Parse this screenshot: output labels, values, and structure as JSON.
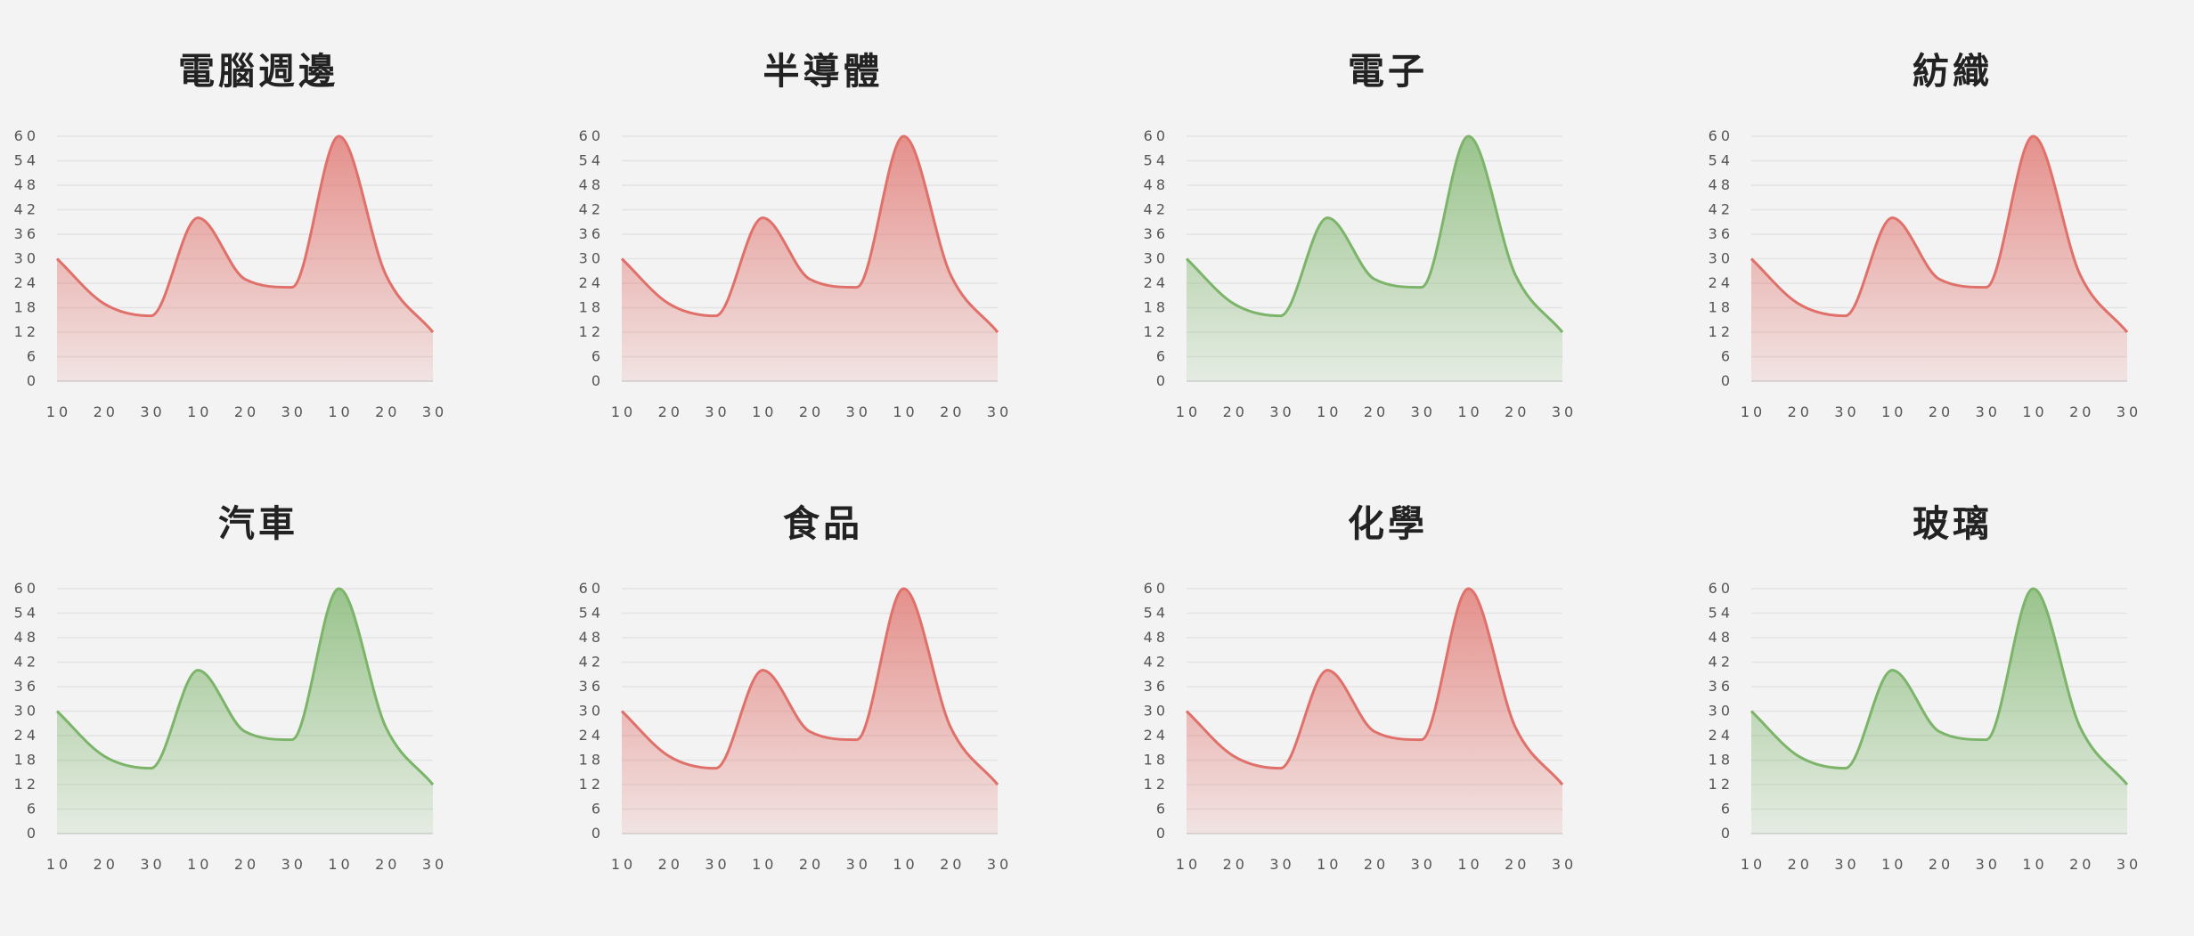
{
  "colors": {
    "up": "#e0706a",
    "down": "#7cb46a",
    "background": "#f3f3f3"
  },
  "chart_data": [
    {
      "type": "area",
      "title": "電腦週邊",
      "color": "red",
      "x": [
        "10",
        "20",
        "30",
        "10",
        "20",
        "30",
        "10",
        "20",
        "30"
      ],
      "values": [
        30,
        19,
        16,
        40,
        25,
        23,
        60,
        26,
        12
      ],
      "ylim": [
        0,
        60
      ],
      "yticks": [
        0,
        6,
        12,
        18,
        24,
        30,
        36,
        42,
        48,
        54,
        60
      ],
      "grid": true,
      "xlabel": "",
      "ylabel": ""
    },
    {
      "type": "area",
      "title": "半導體",
      "color": "red",
      "x": [
        "10",
        "20",
        "30",
        "10",
        "20",
        "30",
        "10",
        "20",
        "30"
      ],
      "values": [
        30,
        19,
        16,
        40,
        25,
        23,
        60,
        26,
        12
      ],
      "ylim": [
        0,
        60
      ],
      "yticks": [
        0,
        6,
        12,
        18,
        24,
        30,
        36,
        42,
        48,
        54,
        60
      ],
      "grid": true,
      "xlabel": "",
      "ylabel": ""
    },
    {
      "type": "area",
      "title": "電子",
      "color": "green",
      "x": [
        "10",
        "20",
        "30",
        "10",
        "20",
        "30",
        "10",
        "20",
        "30"
      ],
      "values": [
        30,
        19,
        16,
        40,
        25,
        23,
        60,
        26,
        12
      ],
      "ylim": [
        0,
        60
      ],
      "yticks": [
        0,
        6,
        12,
        18,
        24,
        30,
        36,
        42,
        48,
        54,
        60
      ],
      "grid": true,
      "xlabel": "",
      "ylabel": ""
    },
    {
      "type": "area",
      "title": "紡織",
      "color": "red",
      "x": [
        "10",
        "20",
        "30",
        "10",
        "20",
        "30",
        "10",
        "20",
        "30"
      ],
      "values": [
        30,
        19,
        16,
        40,
        25,
        23,
        60,
        26,
        12
      ],
      "ylim": [
        0,
        60
      ],
      "yticks": [
        0,
        6,
        12,
        18,
        24,
        30,
        36,
        42,
        48,
        54,
        60
      ],
      "grid": true,
      "xlabel": "",
      "ylabel": ""
    },
    {
      "type": "area",
      "title": "汽車",
      "color": "green",
      "x": [
        "10",
        "20",
        "30",
        "10",
        "20",
        "30",
        "10",
        "20",
        "30"
      ],
      "values": [
        30,
        19,
        16,
        40,
        25,
        23,
        60,
        26,
        12
      ],
      "ylim": [
        0,
        60
      ],
      "yticks": [
        0,
        6,
        12,
        18,
        24,
        30,
        36,
        42,
        48,
        54,
        60
      ],
      "grid": true,
      "xlabel": "",
      "ylabel": ""
    },
    {
      "type": "area",
      "title": "食品",
      "color": "red",
      "x": [
        "10",
        "20",
        "30",
        "10",
        "20",
        "30",
        "10",
        "20",
        "30"
      ],
      "values": [
        30,
        19,
        16,
        40,
        25,
        23,
        60,
        26,
        12
      ],
      "ylim": [
        0,
        60
      ],
      "yticks": [
        0,
        6,
        12,
        18,
        24,
        30,
        36,
        42,
        48,
        54,
        60
      ],
      "grid": true,
      "xlabel": "",
      "ylabel": ""
    },
    {
      "type": "area",
      "title": "化學",
      "color": "red",
      "x": [
        "10",
        "20",
        "30",
        "10",
        "20",
        "30",
        "10",
        "20",
        "30"
      ],
      "values": [
        30,
        19,
        16,
        40,
        25,
        23,
        60,
        26,
        12
      ],
      "ylim": [
        0,
        60
      ],
      "yticks": [
        0,
        6,
        12,
        18,
        24,
        30,
        36,
        42,
        48,
        54,
        60
      ],
      "grid": true,
      "xlabel": "",
      "ylabel": ""
    },
    {
      "type": "area",
      "title": "玻璃",
      "color": "green",
      "x": [
        "10",
        "20",
        "30",
        "10",
        "20",
        "30",
        "10",
        "20",
        "30"
      ],
      "values": [
        30,
        19,
        16,
        40,
        25,
        23,
        60,
        26,
        12
      ],
      "ylim": [
        0,
        60
      ],
      "yticks": [
        0,
        6,
        12,
        18,
        24,
        30,
        36,
        42,
        48,
        54,
        60
      ],
      "grid": true,
      "xlabel": "",
      "ylabel": ""
    }
  ]
}
